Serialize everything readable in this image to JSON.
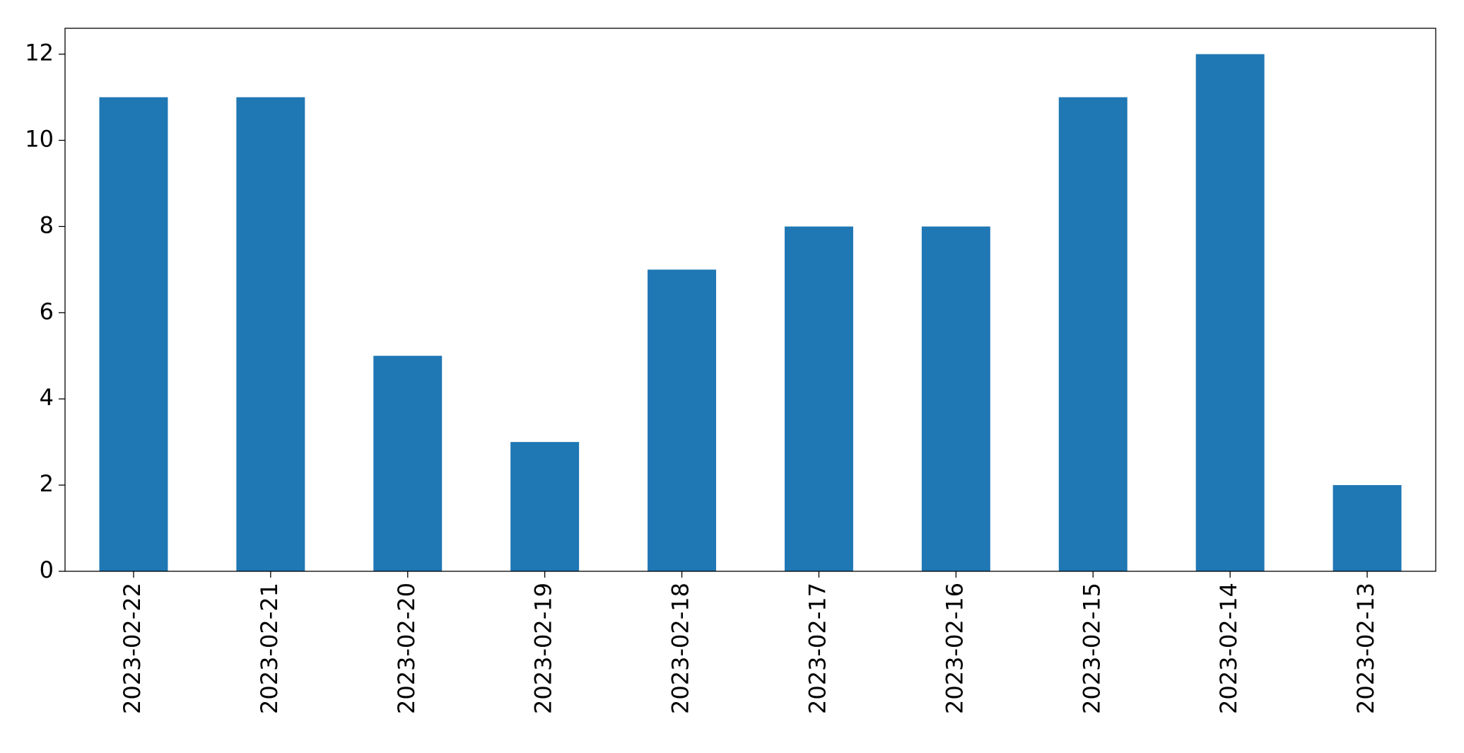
{
  "chart_data": {
    "type": "bar",
    "categories": [
      "2023-02-22",
      "2023-02-21",
      "2023-02-20",
      "2023-02-19",
      "2023-02-18",
      "2023-02-17",
      "2023-02-16",
      "2023-02-15",
      "2023-02-14",
      "2023-02-13"
    ],
    "values": [
      11,
      11,
      5,
      3,
      7,
      8,
      8,
      11,
      12,
      2
    ],
    "color": "#1f77b4",
    "ylim": [
      0,
      12.6
    ],
    "yticks": [
      0,
      2,
      4,
      6,
      8,
      10,
      12
    ],
    "grid": false
  }
}
